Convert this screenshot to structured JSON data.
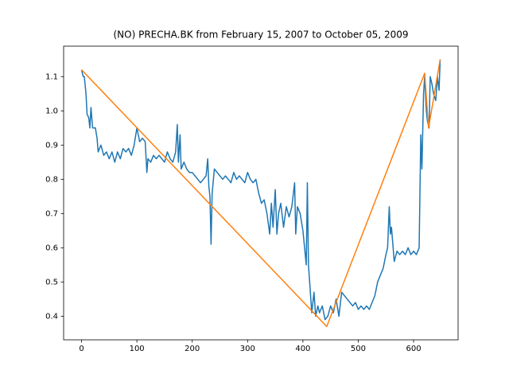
{
  "chart_data": {
    "type": "line",
    "title": "(NO) PRECHA.BK from February 15, 2007 to October 05, 2009",
    "xlim": [
      -32.4,
      680.4
    ],
    "ylim": [
      0.331,
      1.189
    ],
    "xticks": [
      0,
      100,
      200,
      300,
      400,
      500,
      600
    ],
    "yticks": [
      0.4,
      0.5,
      0.6,
      0.7,
      0.8,
      0.9,
      {
        "value": 1,
        "label": "1.0"
      },
      1.1
    ],
    "series": [
      {
        "color": "#1f77b4",
        "x": [
          0,
          3,
          5,
          8,
          10,
          13,
          15,
          17,
          20,
          25,
          28,
          30,
          35,
          40,
          45,
          50,
          55,
          60,
          65,
          70,
          75,
          80,
          85,
          90,
          95,
          100,
          105,
          110,
          115,
          118,
          120,
          125,
          130,
          135,
          140,
          145,
          150,
          155,
          160,
          165,
          170,
          173,
          175,
          178,
          180,
          185,
          190,
          195,
          200,
          205,
          210,
          215,
          220,
          225,
          228,
          230,
          232,
          234,
          236,
          240,
          245,
          250,
          255,
          260,
          265,
          270,
          275,
          280,
          285,
          290,
          295,
          300,
          305,
          310,
          315,
          320,
          325,
          330,
          335,
          340,
          343,
          346,
          350,
          353,
          356,
          360,
          365,
          370,
          375,
          380,
          385,
          387,
          390,
          395,
          400,
          403,
          406,
          408,
          410,
          413,
          416,
          420,
          423,
          427,
          430,
          435,
          440,
          445,
          450,
          455,
          460,
          465,
          470,
          475,
          480,
          485,
          490,
          495,
          500,
          505,
          510,
          515,
          520,
          525,
          530,
          535,
          540,
          545,
          550,
          553,
          556,
          558,
          560,
          565,
          570,
          575,
          580,
          585,
          590,
          595,
          600,
          605,
          610,
          613,
          615,
          618,
          620,
          623,
          625,
          628,
          630,
          633,
          636,
          640,
          643,
          646,
          648
        ],
        "values": [
          1.12,
          1.1,
          1.1,
          1.05,
          0.99,
          0.98,
          0.95,
          1.01,
          0.95,
          0.95,
          0.92,
          0.88,
          0.9,
          0.87,
          0.88,
          0.86,
          0.88,
          0.85,
          0.88,
          0.86,
          0.89,
          0.88,
          0.89,
          0.87,
          0.9,
          0.95,
          0.91,
          0.92,
          0.91,
          0.82,
          0.86,
          0.85,
          0.87,
          0.86,
          0.87,
          0.86,
          0.85,
          0.88,
          0.86,
          0.85,
          0.88,
          0.96,
          0.85,
          0.93,
          0.83,
          0.85,
          0.83,
          0.82,
          0.82,
          0.81,
          0.8,
          0.79,
          0.8,
          0.81,
          0.86,
          0.78,
          0.75,
          0.61,
          0.76,
          0.83,
          0.82,
          0.81,
          0.8,
          0.81,
          0.8,
          0.79,
          0.82,
          0.8,
          0.81,
          0.8,
          0.79,
          0.82,
          0.8,
          0.79,
          0.8,
          0.76,
          0.73,
          0.74,
          0.7,
          0.64,
          0.73,
          0.66,
          0.77,
          0.64,
          0.7,
          0.73,
          0.66,
          0.72,
          0.69,
          0.72,
          0.79,
          0.64,
          0.72,
          0.7,
          0.65,
          0.6,
          0.55,
          0.79,
          0.55,
          0.48,
          0.41,
          0.47,
          0.4,
          0.43,
          0.41,
          0.43,
          0.39,
          0.4,
          0.43,
          0.41,
          0.45,
          0.4,
          0.47,
          0.46,
          0.45,
          0.44,
          0.43,
          0.44,
          0.42,
          0.43,
          0.42,
          0.43,
          0.42,
          0.44,
          0.46,
          0.5,
          0.52,
          0.54,
          0.58,
          0.6,
          0.72,
          0.64,
          0.66,
          0.56,
          0.59,
          0.58,
          0.59,
          0.58,
          0.6,
          0.58,
          0.59,
          0.58,
          0.6,
          0.93,
          0.83,
          1.05,
          1.1,
          1.0,
          0.97,
          0.95,
          1.1,
          1.08,
          1.05,
          1.03,
          1.1,
          1.06,
          1.15
        ]
      },
      {
        "color": "#ff7f0e",
        "x": [
          0,
          443,
          620,
          627,
          648
        ],
        "values": [
          1.12,
          0.37,
          1.11,
          0.95,
          1.15
        ]
      }
    ]
  }
}
